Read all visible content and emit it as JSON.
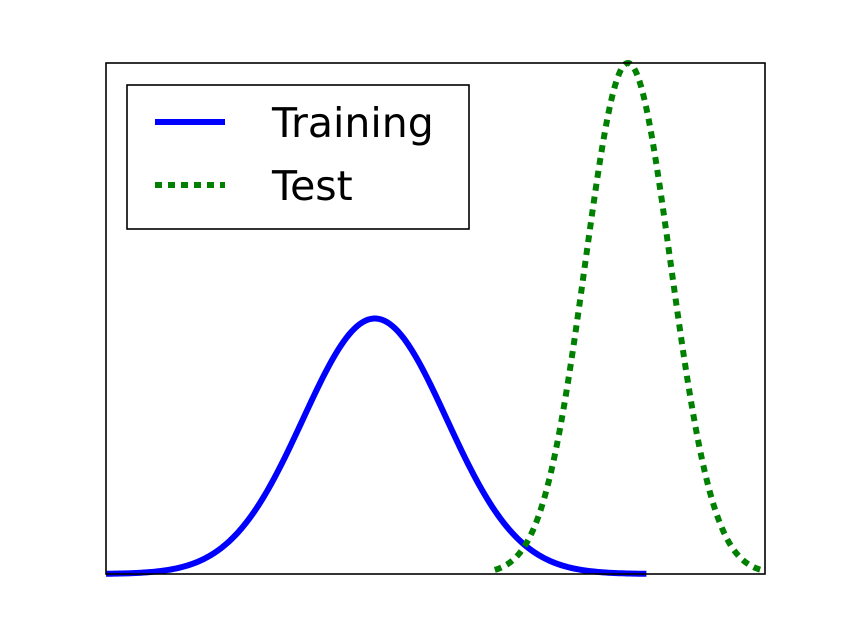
{
  "chart_data": {
    "type": "line",
    "title": "",
    "xlabel": "",
    "ylabel": "",
    "xlim": [
      0,
      1
    ],
    "ylim": [
      0,
      1
    ],
    "grid": false,
    "ticks_visible": false,
    "legend": {
      "placement": "top-left",
      "frame": true
    },
    "series": [
      {
        "name": "Training",
        "color": "#0000ff",
        "line_style": "solid",
        "curve": "gaussian",
        "peak_x": 0.408,
        "peak_y": 0.5,
        "sigma": 0.109,
        "x_range": [
          0.0,
          0.82
        ]
      },
      {
        "name": "Test",
        "color": "#008000",
        "line_style": "dotted",
        "curve": "gaussian",
        "peak_x": 0.792,
        "peak_y": 1.0,
        "sigma": 0.065,
        "x_range": [
          0.59,
          1.0
        ]
      }
    ]
  }
}
